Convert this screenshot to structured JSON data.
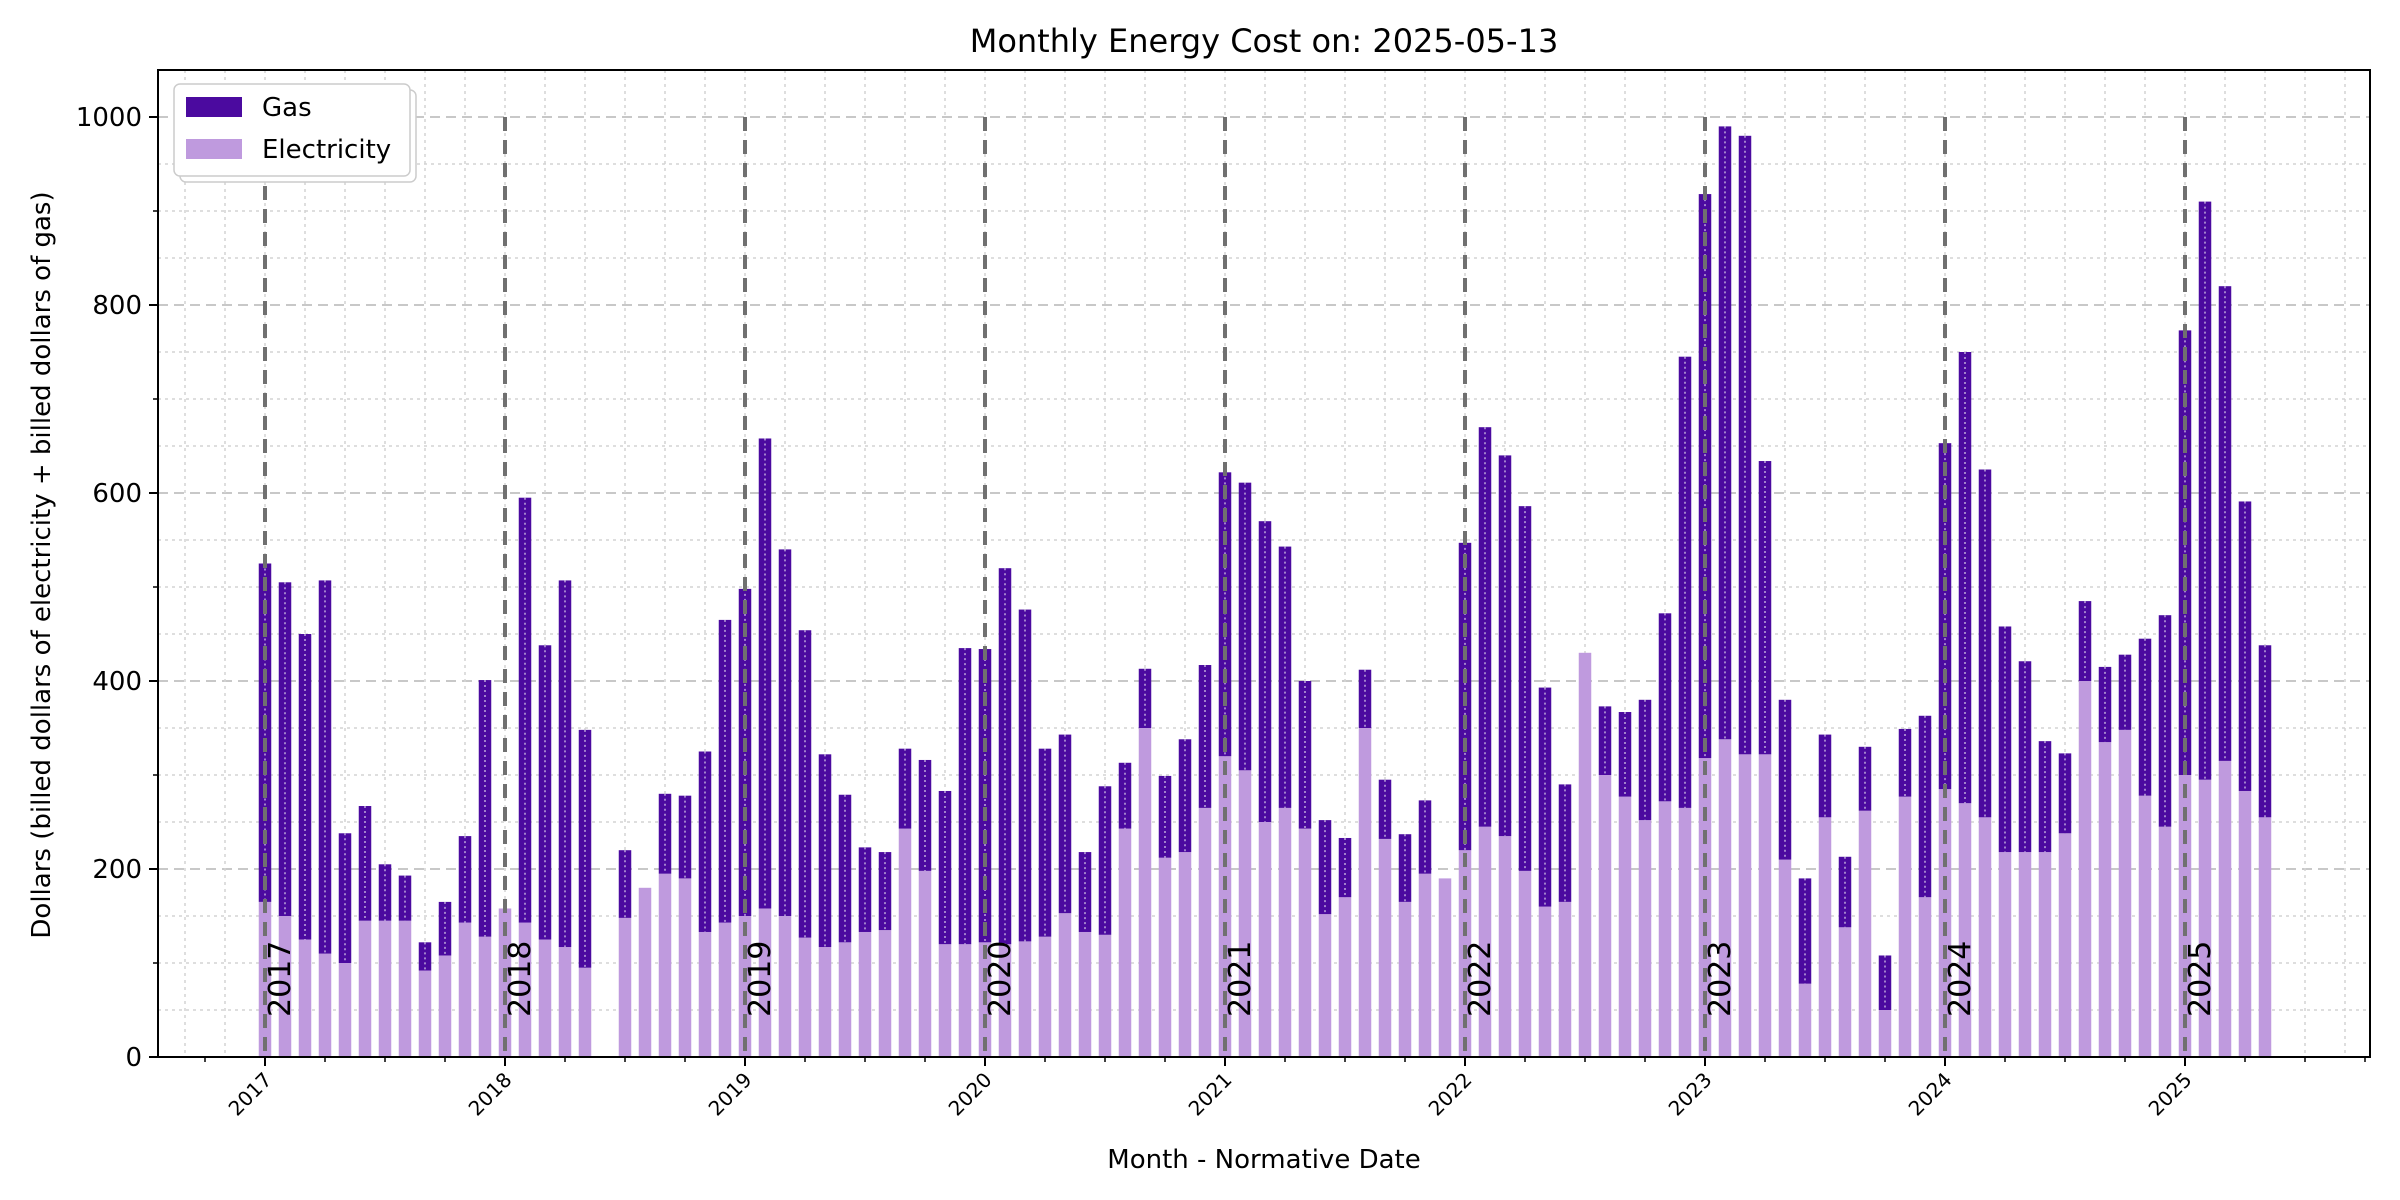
{
  "chart_data": {
    "type": "bar",
    "stacked": true,
    "title": "Monthly Energy Cost on: 2025-05-13",
    "xlabel": "Month - Normative Date",
    "ylabel": "Dollars (billed dollars of electricity + billed dollars of gas)",
    "ylim": [
      0,
      1050
    ],
    "yticks": [
      "0",
      "200",
      "400",
      "600",
      "800",
      "1000"
    ],
    "xticks": [
      "2017",
      "2018",
      "2019",
      "2020",
      "2021",
      "2022",
      "2023",
      "2024",
      "2025"
    ],
    "year_markers": [
      "2017",
      "2018",
      "2019",
      "2020",
      "2021",
      "2022",
      "2023",
      "2024",
      "2025"
    ],
    "grid": true,
    "legend_position": "top-left",
    "x_start": "2017-01",
    "x_end": "2025-05",
    "series": [
      {
        "name": "Electricity",
        "color": "#bf9ade",
        "values": [
          165,
          150,
          125,
          110,
          100,
          145,
          145,
          145,
          92,
          108,
          143,
          128,
          158,
          143,
          125,
          117,
          95,
          null,
          148,
          180,
          195,
          190,
          133,
          143,
          150,
          158,
          150,
          127,
          117,
          122,
          133,
          135,
          243,
          198,
          120,
          120,
          122,
          120,
          123,
          128,
          153,
          133,
          130,
          243,
          350,
          212,
          218,
          265,
          320,
          305,
          250,
          265,
          243,
          152,
          170,
          350,
          232,
          165,
          195,
          190,
          220,
          245,
          235,
          198,
          160,
          165,
          430,
          300,
          277,
          252,
          272,
          265,
          318,
          338,
          322,
          322,
          210,
          78,
          255,
          138,
          262,
          50,
          277,
          170,
          285,
          270,
          255,
          218,
          218,
          218,
          238,
          400,
          335,
          348,
          278,
          245,
          300,
          295,
          315,
          283,
          255
        ]
      },
      {
        "name": "Gas",
        "color": "#4b0a9f",
        "values": [
          360,
          355,
          325,
          397,
          138,
          122,
          60,
          48,
          30,
          57,
          92,
          273,
          0,
          452,
          313,
          390,
          253,
          null,
          72,
          0,
          85,
          88,
          192,
          322,
          348,
          500,
          390,
          327,
          205,
          157,
          90,
          83,
          85,
          118,
          163,
          315,
          312,
          400,
          353,
          200,
          190,
          85,
          158,
          70,
          63,
          87,
          120,
          152,
          302,
          306,
          320,
          278,
          157,
          100,
          63,
          62,
          63,
          72,
          78,
          0,
          327,
          425,
          405,
          388,
          233,
          125,
          0,
          73,
          90,
          128,
          200,
          480,
          600,
          652,
          658,
          312,
          170,
          112,
          88,
          75,
          68,
          58,
          72,
          193,
          368,
          480,
          370,
          240,
          203,
          118,
          85,
          85,
          80,
          80,
          167,
          225,
          473,
          615,
          505,
          308,
          183
        ]
      }
    ]
  }
}
